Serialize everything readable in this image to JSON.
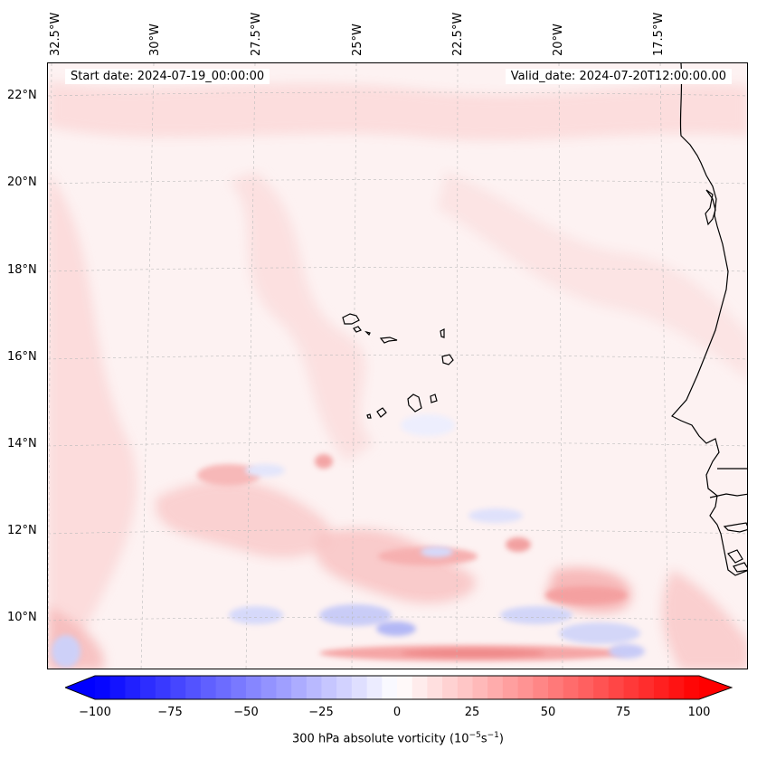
{
  "header": {
    "start_date": "Start date: 2024-07-19_00:00:00",
    "valid_date": "Valid_date: 2024-07-20T12:00:00.00"
  },
  "map": {
    "longitude_labels": [
      "32.5°W",
      "30°W",
      "27.5°W",
      "25°W",
      "22.5°W",
      "20°W",
      "17.5°W"
    ],
    "latitude_labels": [
      "22°N",
      "20°N",
      "18°N",
      "16°N",
      "14°N",
      "12°N",
      "10°N"
    ],
    "field_colormap": "bwr",
    "positive_color": "#ff0000",
    "negative_color": "#0000ff",
    "neutral_color": "#ffffff",
    "features": [
      "Cape Verde islands",
      "West African coastline"
    ]
  },
  "colorbar": {
    "tick_labels": [
      "−100",
      "−75",
      "−50",
      "−25",
      "0",
      "25",
      "50",
      "75",
      "100"
    ],
    "caption_prefix": "300 hPa absolute vorticity (10",
    "caption_exp1": "−5",
    "caption_mid": "s",
    "caption_exp2": "−1",
    "caption_suffix": ")",
    "range": [
      -100,
      100
    ],
    "extend": "both"
  }
}
